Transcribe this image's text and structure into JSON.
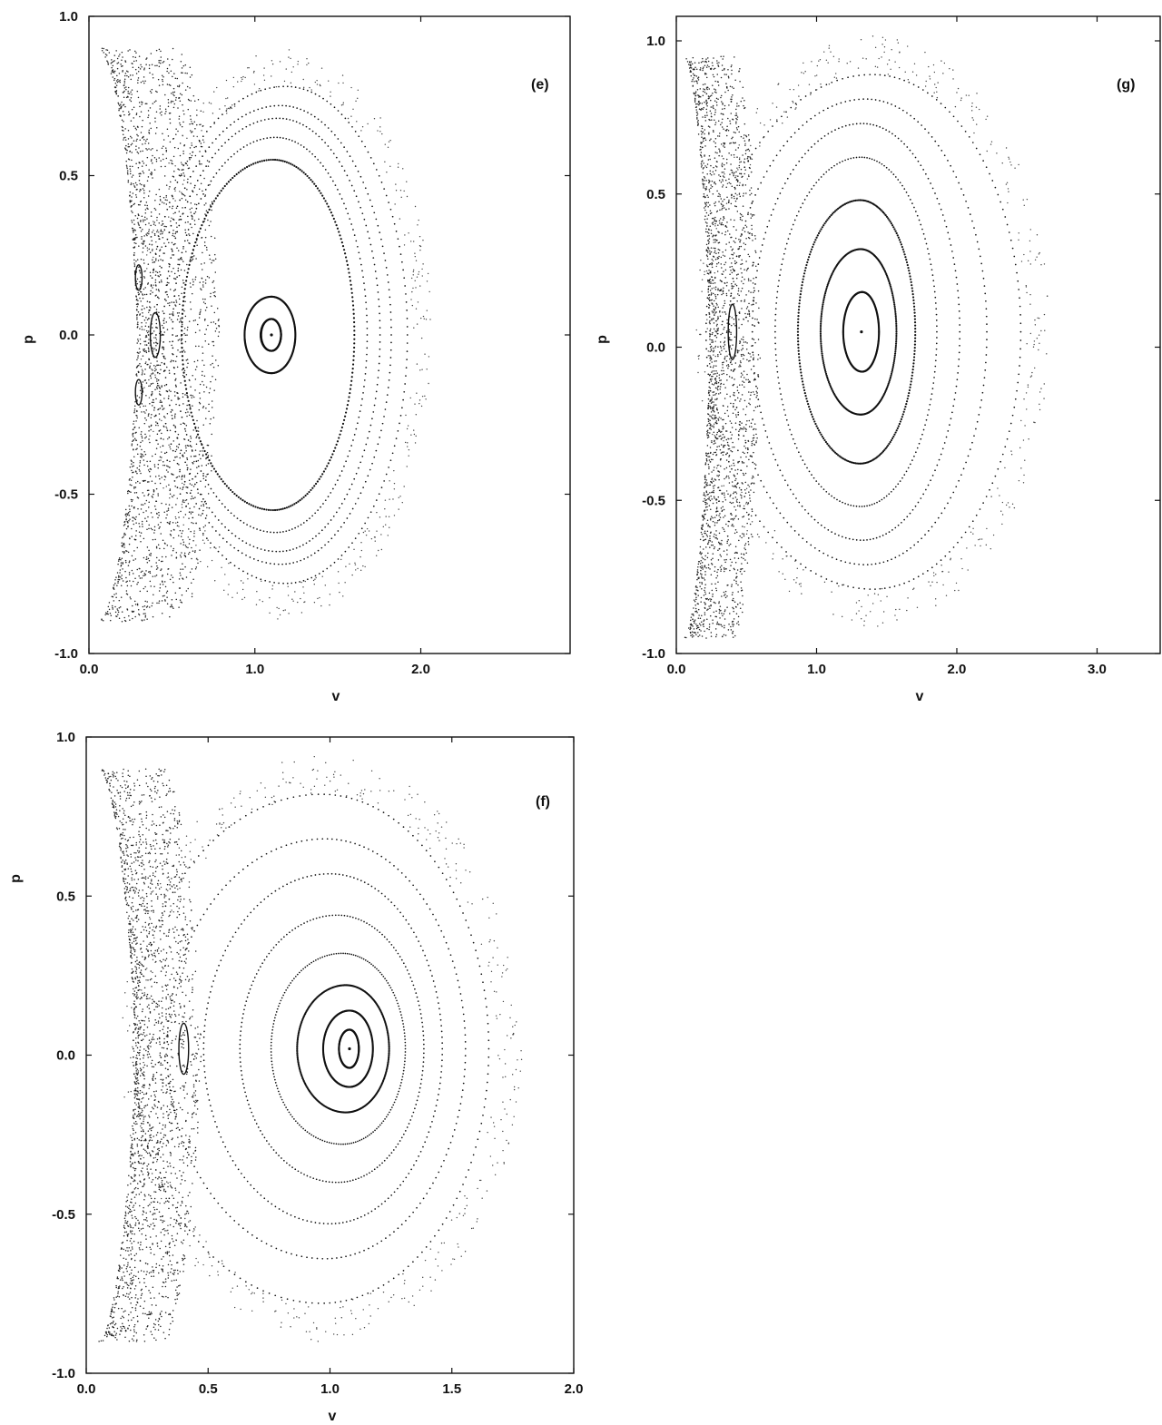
{
  "chart_data": [
    {
      "type": "scatter",
      "panel_label": "(e)",
      "xlabel": "v",
      "ylabel": "p",
      "xlim": [
        0.0,
        2.9
      ],
      "ylim": [
        -1.0,
        1.0
      ],
      "xticks": [
        "0.0",
        "1.0",
        "2.0"
      ],
      "xtick_values": [
        0.0,
        1.0,
        2.0
      ],
      "yticks": [
        "1.0",
        "0.5",
        "0.0",
        "-0.5",
        "-1.0"
      ],
      "ytick_values": [
        1.0,
        0.5,
        0.0,
        -0.5,
        -1.0
      ],
      "fixed_point": [
        1.1,
        0.0
      ],
      "tori": [
        {
          "vmin": 1.04,
          "vmax": 1.16,
          "pmax": 0.05
        },
        {
          "vmin": 0.95,
          "vmax": 1.25,
          "pmax": 0.12
        },
        {
          "vmin": 0.6,
          "vmax": 1.62,
          "pmax": 0.55
        },
        {
          "vmin": 0.55,
          "vmax": 1.7,
          "pmax": 0.62
        },
        {
          "vmin": 0.5,
          "vmax": 1.78,
          "pmax": 0.68
        },
        {
          "vmin": 0.46,
          "vmax": 1.85,
          "pmax": 0.72
        },
        {
          "vmin": 0.42,
          "vmax": 1.95,
          "pmax": 0.78
        }
      ],
      "islands": [
        {
          "v": 0.4,
          "p": 0.0,
          "dv": 0.03,
          "dp": 0.07
        },
        {
          "v": 0.3,
          "p": 0.18,
          "dv": 0.02,
          "dp": 0.04
        },
        {
          "v": 0.3,
          "p": -0.18,
          "dv": 0.02,
          "dp": 0.04
        },
        {
          "v": 1.1,
          "p": 0.0,
          "dv": 0.06,
          "dp": 0.05
        }
      ],
      "chaotic_sea": {
        "vmin": 0.05,
        "vmax": 0.6,
        "pmax": 0.9
      }
    },
    {
      "type": "scatter",
      "panel_label": "(g)",
      "xlabel": "v",
      "ylabel": "p",
      "xlim": [
        0.0,
        3.45
      ],
      "ylim": [
        -1.0,
        1.08
      ],
      "xticks": [
        "0.0",
        "1.0",
        "2.0",
        "3.0"
      ],
      "xtick_values": [
        0.0,
        1.0,
        2.0,
        3.0
      ],
      "yticks": [
        "1.0",
        "0.5",
        "0.0",
        "-0.5",
        "-1.0"
      ],
      "ytick_values": [
        1.0,
        0.5,
        0.0,
        -0.5,
        -1.0
      ],
      "fixed_point": [
        1.32,
        0.05
      ],
      "tori": [
        {
          "vmin": 1.2,
          "vmax": 1.45,
          "pmax": 0.13
        },
        {
          "vmin": 1.05,
          "vmax": 1.58,
          "pmax": 0.27
        },
        {
          "vmin": 0.9,
          "vmax": 1.72,
          "pmax": 0.43
        },
        {
          "vmin": 0.75,
          "vmax": 1.88,
          "pmax": 0.57
        },
        {
          "vmin": 0.6,
          "vmax": 2.05,
          "pmax": 0.68
        },
        {
          "vmin": 0.45,
          "vmax": 2.25,
          "pmax": 0.76
        },
        {
          "vmin": 0.3,
          "vmax": 2.5,
          "pmax": 0.84
        }
      ],
      "islands": [
        {
          "v": 0.4,
          "p": 0.05,
          "dv": 0.03,
          "dp": 0.09
        }
      ],
      "chaotic_sea": {
        "vmin": 0.05,
        "vmax": 0.45,
        "pmax": 0.95
      }
    },
    {
      "type": "scatter",
      "panel_label": "(f)",
      "xlabel": "v",
      "ylabel": "p",
      "xlim": [
        0.0,
        2.0
      ],
      "ylim": [
        -1.0,
        1.0
      ],
      "xticks": [
        "0.0",
        "0.5",
        "1.0",
        "1.5",
        "2.0"
      ],
      "xtick_values": [
        0.0,
        0.5,
        1.0,
        1.5,
        2.0
      ],
      "yticks": [
        "1.0",
        "0.5",
        "0.0",
        "-0.5",
        "-1.0"
      ],
      "ytick_values": [
        1.0,
        0.5,
        0.0,
        -0.5,
        -1.0
      ],
      "fixed_point": [
        1.08,
        0.02
      ],
      "tori": [
        {
          "vmin": 1.04,
          "vmax": 1.12,
          "pmax": 0.06
        },
        {
          "vmin": 0.98,
          "vmax": 1.18,
          "pmax": 0.12
        },
        {
          "vmin": 0.88,
          "vmax": 1.25,
          "pmax": 0.2
        },
        {
          "vmin": 0.78,
          "vmax": 1.32,
          "pmax": 0.3
        },
        {
          "vmin": 0.66,
          "vmax": 1.4,
          "pmax": 0.42
        },
        {
          "vmin": 0.52,
          "vmax": 1.48,
          "pmax": 0.55
        },
        {
          "vmin": 0.38,
          "vmax": 1.58,
          "pmax": 0.66
        },
        {
          "vmin": 0.25,
          "vmax": 1.68,
          "pmax": 0.8
        }
      ],
      "islands": [
        {
          "v": 0.4,
          "p": 0.02,
          "dv": 0.02,
          "dp": 0.08
        }
      ],
      "chaotic_sea": {
        "vmin": 0.05,
        "vmax": 0.35,
        "pmax": 0.9
      }
    }
  ]
}
